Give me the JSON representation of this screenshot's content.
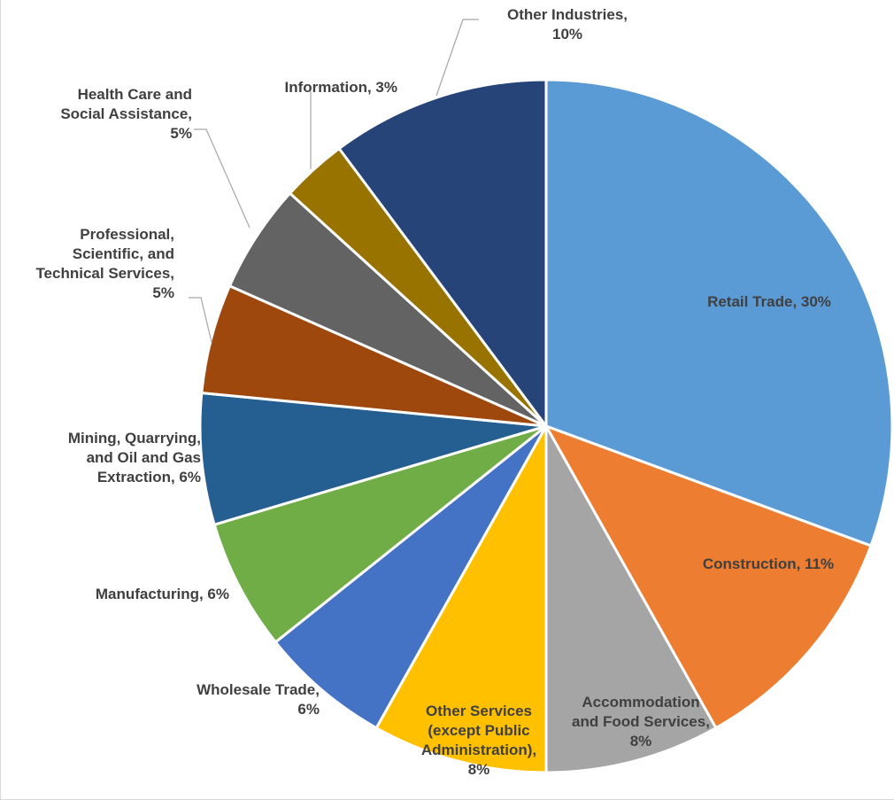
{
  "chart_data": {
    "type": "pie",
    "title": "",
    "start_angle_deg": 0,
    "direction": "clockwise",
    "slices": [
      {
        "label": "Retail Trade",
        "value": 30,
        "value_label": "30%",
        "display_lines": [
          "Retail Trade, 30%"
        ],
        "color": "#5b9bd5",
        "label_color": "#404040",
        "label_placement": "inside"
      },
      {
        "label": "Construction",
        "value": 11,
        "value_label": "11%",
        "display_lines": [
          "Construction, 11%"
        ],
        "color": "#ed7d31",
        "label_color": "#404040",
        "label_placement": "inside"
      },
      {
        "label": "Accommodation and Food Services",
        "value": 8,
        "value_label": "8%",
        "display_lines": [
          "Accommodation",
          "and Food Services,",
          "8%"
        ],
        "color": "#a5a5a5",
        "label_color": "#404040",
        "label_placement": "inside"
      },
      {
        "label": "Other Services (except Public Administration)",
        "value": 8,
        "value_label": "8%",
        "display_lines": [
          "Other Services",
          "(except Public",
          "Administration),",
          "8%"
        ],
        "color": "#ffc000",
        "label_color": "#404040",
        "label_placement": "inside"
      },
      {
        "label": "Wholesale Trade",
        "value": 6,
        "value_label": "6%",
        "display_lines": [
          "Wholesale Trade,",
          "6%"
        ],
        "color": "#4472c4",
        "label_color": "#404040",
        "label_placement": "outside"
      },
      {
        "label": "Manufacturing",
        "value": 6,
        "value_label": "6%",
        "display_lines": [
          "Manufacturing, 6%"
        ],
        "color": "#70ad47",
        "label_color": "#404040",
        "label_placement": "outside"
      },
      {
        "label": "Mining, Quarrying, and Oil and Gas Extraction",
        "value": 6,
        "value_label": "6%",
        "display_lines": [
          "Mining, Quarrying,",
          "and Oil and Gas",
          "Extraction, 6%"
        ],
        "color": "#255e91",
        "label_color": "#404040",
        "label_placement": "outside"
      },
      {
        "label": "Professional, Scientific, and Technical Services",
        "value": 5,
        "value_label": "5%",
        "display_lines": [
          "Professional,",
          "Scientific, and",
          "Technical Services,",
          "5%"
        ],
        "color": "#9e480e",
        "label_color": "#404040",
        "label_placement": "outside"
      },
      {
        "label": "Health Care and Social Assistance",
        "value": 5,
        "value_label": "5%",
        "display_lines": [
          "Health Care and",
          "Social Assistance,",
          "5%"
        ],
        "color": "#636363",
        "label_color": "#404040",
        "label_placement": "outside"
      },
      {
        "label": "Information",
        "value": 3,
        "value_label": "3%",
        "display_lines": [
          "Information, 3%"
        ],
        "color": "#997300",
        "label_color": "#404040",
        "label_placement": "outside"
      },
      {
        "label": "Other Industries",
        "value": 10,
        "value_label": "10%",
        "display_lines": [
          "Other Industries,",
          "10%"
        ],
        "color": "#264478",
        "label_color": "#404040",
        "label_placement": "outside"
      }
    ]
  }
}
